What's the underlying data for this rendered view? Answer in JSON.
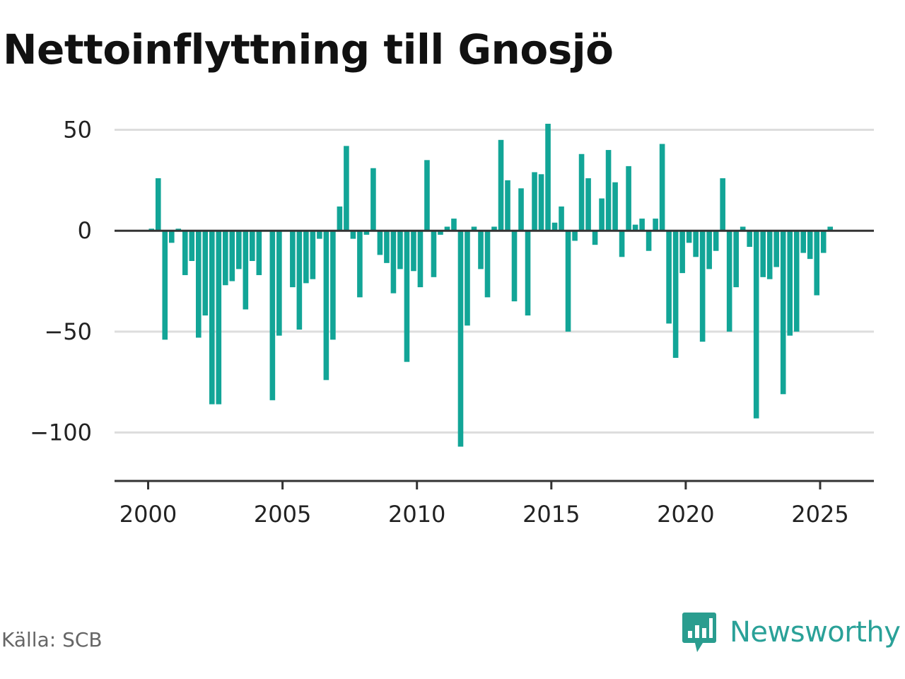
{
  "title": "Nettoinflyttning till Gnosjö",
  "source": "Källa: SCB",
  "brand": {
    "name": "Newsworthy",
    "icon": "newsworthy-logo-icon",
    "color": "#2a9d8f"
  },
  "colors": {
    "bar": "#12a597",
    "grid": "#dddddd",
    "zero_line": "#333333",
    "axis": "#333333"
  },
  "chart_data": {
    "type": "bar",
    "title": "Nettoinflyttning till Gnosjö",
    "xlabel": "",
    "ylabel": "",
    "ylim": [
      -124,
      60
    ],
    "xlim": [
      1998.75,
      2027.0
    ],
    "y_ticks": [
      50,
      0,
      -50,
      -100
    ],
    "y_tick_labels": [
      "50",
      "0",
      "−50",
      "−100"
    ],
    "x_ticks": [
      2000,
      2005,
      2010,
      2015,
      2020,
      2025
    ],
    "x_tick_labels": [
      "2000",
      "2005",
      "2010",
      "2015",
      "2020",
      "2025"
    ],
    "grid": true,
    "bar_interval": "quarter",
    "x": [
      2000.0,
      2000.25,
      2000.5,
      2000.75,
      2001.0,
      2001.25,
      2001.5,
      2001.75,
      2002.0,
      2002.25,
      2002.5,
      2002.75,
      2003.0,
      2003.25,
      2003.5,
      2003.75,
      2004.0,
      2004.25,
      2004.5,
      2004.75,
      2005.0,
      2005.25,
      2005.5,
      2005.75,
      2006.0,
      2006.25,
      2006.5,
      2006.75,
      2007.0,
      2007.25,
      2007.5,
      2007.75,
      2008.0,
      2008.25,
      2008.5,
      2008.75,
      2009.0,
      2009.25,
      2009.5,
      2009.75,
      2010.0,
      2010.25,
      2010.5,
      2010.75,
      2011.0,
      2011.25,
      2011.5,
      2011.75,
      2012.0,
      2012.25,
      2012.5,
      2012.75,
      2013.0,
      2013.25,
      2013.5,
      2013.75,
      2014.0,
      2014.25,
      2014.5,
      2014.75,
      2015.0,
      2015.25,
      2015.5,
      2015.75,
      2016.0,
      2016.25,
      2016.5,
      2016.75,
      2017.0,
      2017.25,
      2017.5,
      2017.75,
      2018.0,
      2018.25,
      2018.5,
      2018.75,
      2019.0,
      2019.25,
      2019.5,
      2019.75,
      2020.0,
      2020.25,
      2020.5,
      2020.75,
      2021.0,
      2021.25,
      2021.5,
      2021.75,
      2022.0,
      2022.25,
      2022.5,
      2022.75,
      2023.0,
      2023.25,
      2023.5,
      2023.75,
      2024.0,
      2024.25,
      2024.5,
      2024.75,
      2025.0,
      2025.25
    ],
    "values": [
      1,
      26,
      -54,
      -6,
      1,
      -22,
      -15,
      -53,
      -42,
      -86,
      -86,
      -27,
      -25,
      -19,
      -39,
      -15,
      -22,
      0,
      -84,
      -52,
      0,
      -28,
      -49,
      -26,
      -24,
      -4,
      -74,
      -54,
      12,
      42,
      -4,
      -33,
      -2,
      31,
      -12,
      -16,
      -31,
      -19,
      -65,
      -20,
      -28,
      35,
      -23,
      -2,
      2,
      6,
      -107,
      -47,
      2,
      -19,
      -33,
      2,
      45,
      25,
      -35,
      21,
      -42,
      29,
      28,
      53,
      4,
      12,
      -50,
      -5,
      38,
      26,
      -7,
      16,
      40,
      24,
      -13,
      32,
      3,
      6,
      -10,
      6,
      43,
      -46,
      -63,
      -21,
      -6,
      -13,
      -55,
      -19,
      -10,
      26,
      -50,
      -28,
      2,
      -8,
      -93,
      -23,
      -24,
      -18,
      -81,
      -52,
      -50,
      -11,
      -14,
      -32,
      -11,
      2
    ]
  }
}
